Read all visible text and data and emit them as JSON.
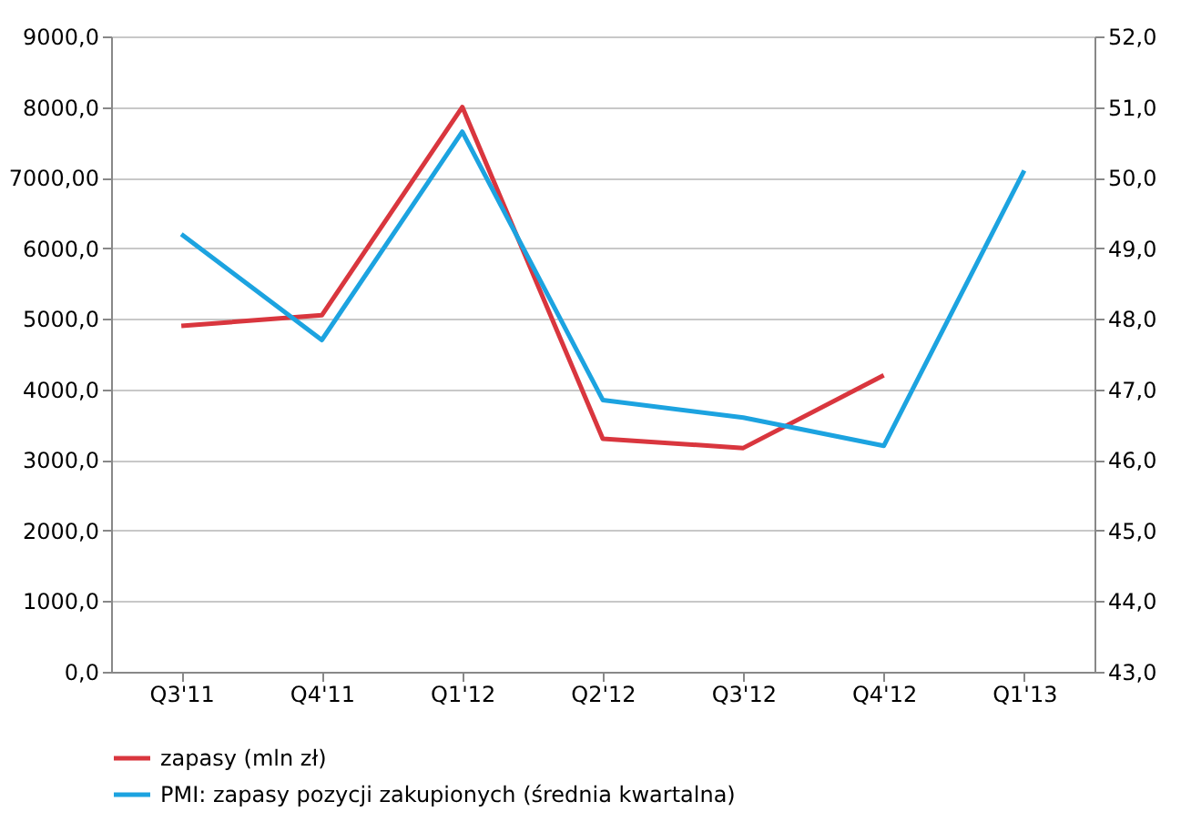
{
  "chart_data": {
    "type": "line",
    "categories": [
      "Q3'11",
      "Q4'11",
      "Q1'12",
      "Q2'12",
      "Q3'12",
      "Q4'12",
      "Q1'13"
    ],
    "series": [
      {
        "name": "zapasy (mln zł)",
        "color": "#d9363e",
        "values": [
          4900,
          5050,
          8000,
          3300,
          3170,
          4200,
          null
        ]
      },
      {
        "name": "PMI: zapasy pozycji zakupionych (średnia kwartalna)",
        "color": "#1ca3e0",
        "axis": "y2",
        "values": [
          49.2,
          47.7,
          50.65,
          46.85,
          46.6,
          46.2,
          50.1
        ]
      }
    ],
    "ylim": [
      0,
      9000
    ],
    "yticks": [
      {
        "value": 0,
        "label": "0,0"
      },
      {
        "value": 1000,
        "label": "1000,0"
      },
      {
        "value": 2000,
        "label": "2000,0"
      },
      {
        "value": 3000,
        "label": "3000,0"
      },
      {
        "value": 4000,
        "label": "4000,0"
      },
      {
        "value": 5000,
        "label": "5000,0"
      },
      {
        "value": 6000,
        "label": "6000,0"
      },
      {
        "value": 7000,
        "label": "7000,00"
      },
      {
        "value": 8000,
        "label": "8000,0"
      },
      {
        "value": 9000,
        "label": "9000,0"
      }
    ],
    "y2lim": [
      43,
      52
    ],
    "y2ticks": [
      {
        "value": 43,
        "label": "43,0"
      },
      {
        "value": 44,
        "label": "44,0"
      },
      {
        "value": 45,
        "label": "45,0"
      },
      {
        "value": 46,
        "label": "46,0"
      },
      {
        "value": 47,
        "label": "47,0"
      },
      {
        "value": 48,
        "label": "48,0"
      },
      {
        "value": 49,
        "label": "49,0"
      },
      {
        "value": 50,
        "label": "50,0"
      },
      {
        "value": 51,
        "label": "51,0"
      },
      {
        "value": 52,
        "label": "52,0"
      }
    ],
    "grid": "y",
    "legend": "bottom",
    "line_style": "solid",
    "marker": "none"
  }
}
